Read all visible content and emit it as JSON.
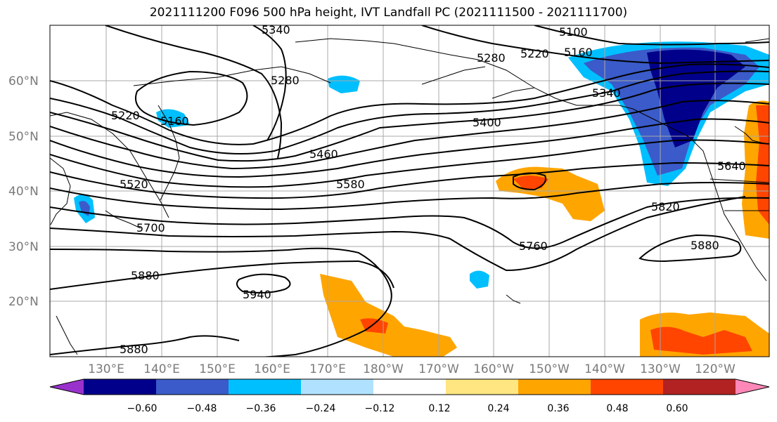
{
  "title": "2021111200 F096 500 hPa height, IVT Landfall PC (2021111500 - 2021111700)",
  "map": {
    "lat_labels": [
      "60°N",
      "50°N",
      "40°N",
      "30°N",
      "20°N"
    ],
    "lon_labels": [
      "130°E",
      "140°E",
      "150°E",
      "160°E",
      "170°E",
      "180°W",
      "170°W",
      "160°W",
      "150°W",
      "140°W",
      "130°W",
      "120°W"
    ],
    "contour_labels": [
      "5100",
      "5160",
      "5220",
      "5280",
      "5340",
      "5280",
      "5220",
      "5160",
      "5340",
      "5400",
      "5460",
      "5520",
      "5580",
      "5640",
      "5700",
      "5760",
      "5820",
      "5880",
      "5880",
      "5880",
      "5940"
    ]
  },
  "colorbar": {
    "colors": [
      "#9932cc",
      "#00008b",
      "#3a5bc9",
      "#00bfff",
      "#b0e2ff",
      "#ffffff",
      "#ffe680",
      "#ffa500",
      "#ff4500",
      "#b22222",
      "#ff88b8"
    ],
    "ticks": [
      "−0.60",
      "−0.48",
      "−0.36",
      "−0.24",
      "−0.12",
      "0.12",
      "0.24",
      "0.36",
      "0.48",
      "0.60"
    ]
  }
}
